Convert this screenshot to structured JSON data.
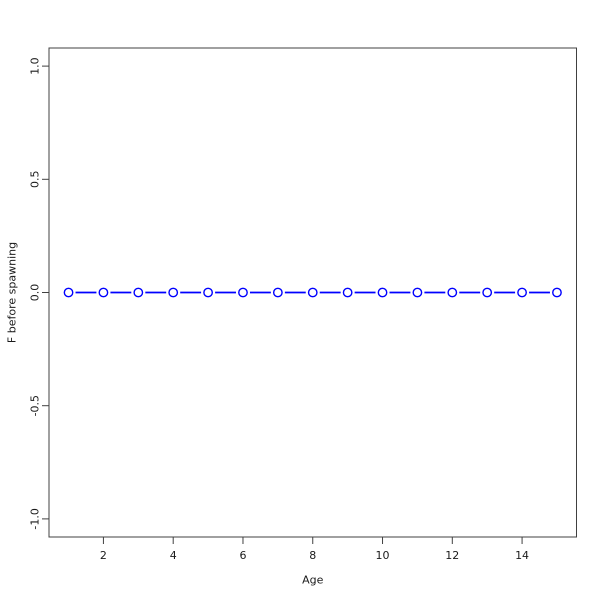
{
  "figure": {
    "background": "#ffffff"
  },
  "chart_data": {
    "type": "line",
    "title": "",
    "xlabel": "Age",
    "ylabel": "F before spawning",
    "x": [
      1,
      2,
      3,
      4,
      5,
      6,
      7,
      8,
      9,
      10,
      11,
      12,
      13,
      14,
      15
    ],
    "y": [
      0,
      0,
      0,
      0,
      0,
      0,
      0,
      0,
      0,
      0,
      0,
      0,
      0,
      0,
      0
    ],
    "x_ticks": {
      "values": [
        2,
        4,
        6,
        8,
        10,
        12,
        14
      ],
      "labels": [
        "2",
        "4",
        "6",
        "8",
        "10",
        "12",
        "14"
      ]
    },
    "y_ticks": {
      "values": [
        -1.0,
        -0.5,
        0.0,
        0.5,
        1.0
      ],
      "labels": [
        "-1.0",
        "-0.5",
        "0.0",
        "0.5",
        "1.0"
      ]
    },
    "xlim": [
      0.44,
      15.56
    ],
    "ylim": [
      -1.08,
      1.08
    ],
    "grid": false,
    "legend": "none",
    "style": {
      "marker": "open-circle",
      "line_type": "points-joined-with-gaps",
      "series_color": "#0000ff",
      "axis_color": "#404040",
      "label_color": "#1a1a1a",
      "background": "#ffffff"
    }
  }
}
